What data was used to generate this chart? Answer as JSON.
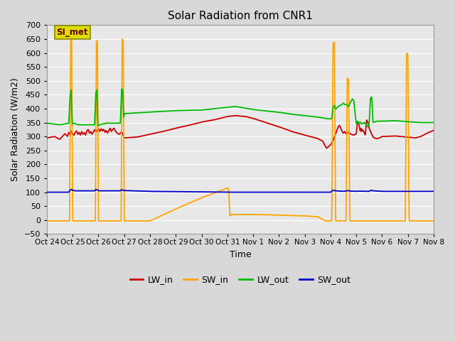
{
  "title": "Solar Radiation from CNR1",
  "xlabel": "Time",
  "ylabel": "Solar Radiation (W/m2)",
  "annotation": "SI_met",
  "ylim": [
    -50,
    700
  ],
  "xtick_labels": [
    "Oct 24",
    "Oct 25",
    "Oct 26",
    "Oct 27",
    "Oct 28",
    "Oct 29",
    "Oct 30",
    "Oct 31",
    "Nov 1",
    "Nov 2",
    "Nov 3",
    "Nov 4",
    "Nov 5",
    "Nov 6",
    "Nov 7",
    "Nov 8"
  ],
  "colors": {
    "LW_in": "#cc0000",
    "SW_in": "#ffa500",
    "LW_out": "#00bb00",
    "SW_out": "#0000cc"
  },
  "fig_bg": "#d8d8d8",
  "plot_bg": "#e8e8e8",
  "grid_color": "#ffffff",
  "annotation_box_color": "#dddd00",
  "annotation_text_color": "#660000",
  "annotation_border_color": "#888800"
}
